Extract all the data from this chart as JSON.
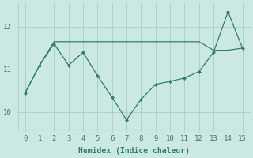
{
  "x": [
    0,
    1,
    2,
    3,
    4,
    5,
    6,
    7,
    8,
    9,
    10,
    11,
    12,
    13,
    14,
    15
  ],
  "y_main": [
    10.45,
    11.1,
    11.6,
    11.1,
    11.4,
    10.85,
    10.35,
    9.82,
    10.3,
    10.65,
    10.72,
    10.8,
    10.95,
    11.4,
    12.35,
    11.5
  ],
  "y_flat": [
    10.45,
    11.1,
    11.65,
    11.65,
    11.65,
    11.65,
    11.65,
    11.65,
    11.65,
    11.65,
    11.65,
    11.65,
    11.65,
    11.45,
    11.45,
    11.5
  ],
  "line_color": "#2a7f72",
  "bg_color": "#cce8e2",
  "grid_color": "#afd0cb",
  "xlabel": "Humidex (Indice chaleur)",
  "ylim": [
    9.6,
    12.55
  ],
  "xlim": [
    -0.5,
    15.5
  ],
  "yticks": [
    10,
    11,
    12
  ],
  "xticks": [
    0,
    1,
    2,
    3,
    4,
    5,
    6,
    7,
    8,
    9,
    10,
    11,
    12,
    13,
    14,
    15
  ],
  "marker": "D",
  "markersize": 2.0,
  "linewidth": 0.9,
  "xlabel_fontsize": 7,
  "tick_fontsize": 6.5
}
